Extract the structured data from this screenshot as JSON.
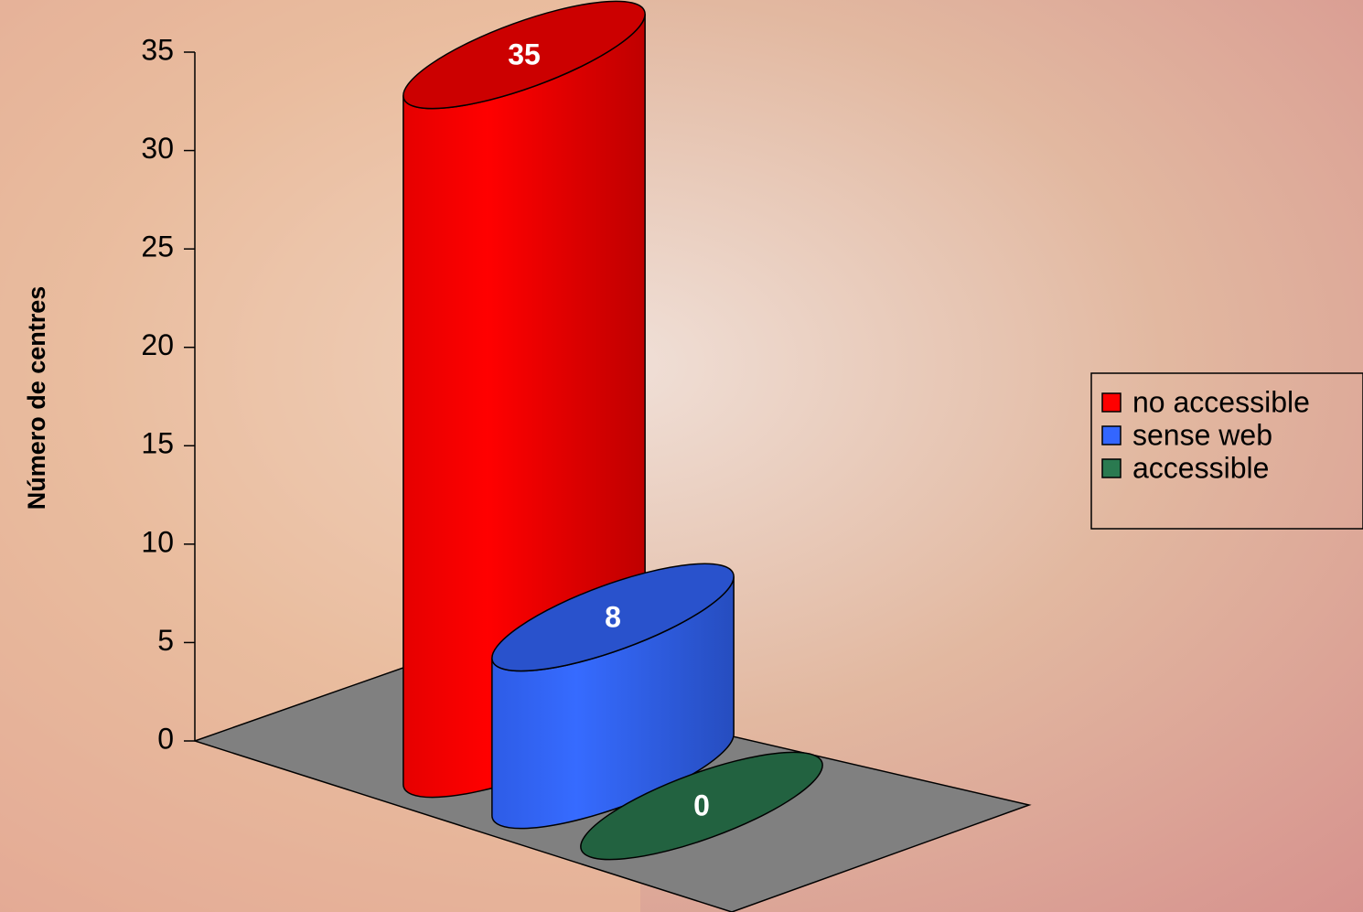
{
  "chart_data": {
    "type": "bar3d",
    "ylabel": "Número de centres",
    "categories": [
      null
    ],
    "series": [
      {
        "name": "no accessible",
        "color": "#ff0000",
        "values": [
          35
        ]
      },
      {
        "name": "sense web",
        "color": "#3366ff",
        "values": [
          8
        ]
      },
      {
        "name": "accessible",
        "color": "#2a7a50",
        "values": [
          0
        ]
      }
    ],
    "ylim": [
      0,
      35
    ],
    "yticks": [
      0,
      5,
      10,
      15,
      20,
      25,
      30,
      35
    ],
    "legend": "right"
  }
}
